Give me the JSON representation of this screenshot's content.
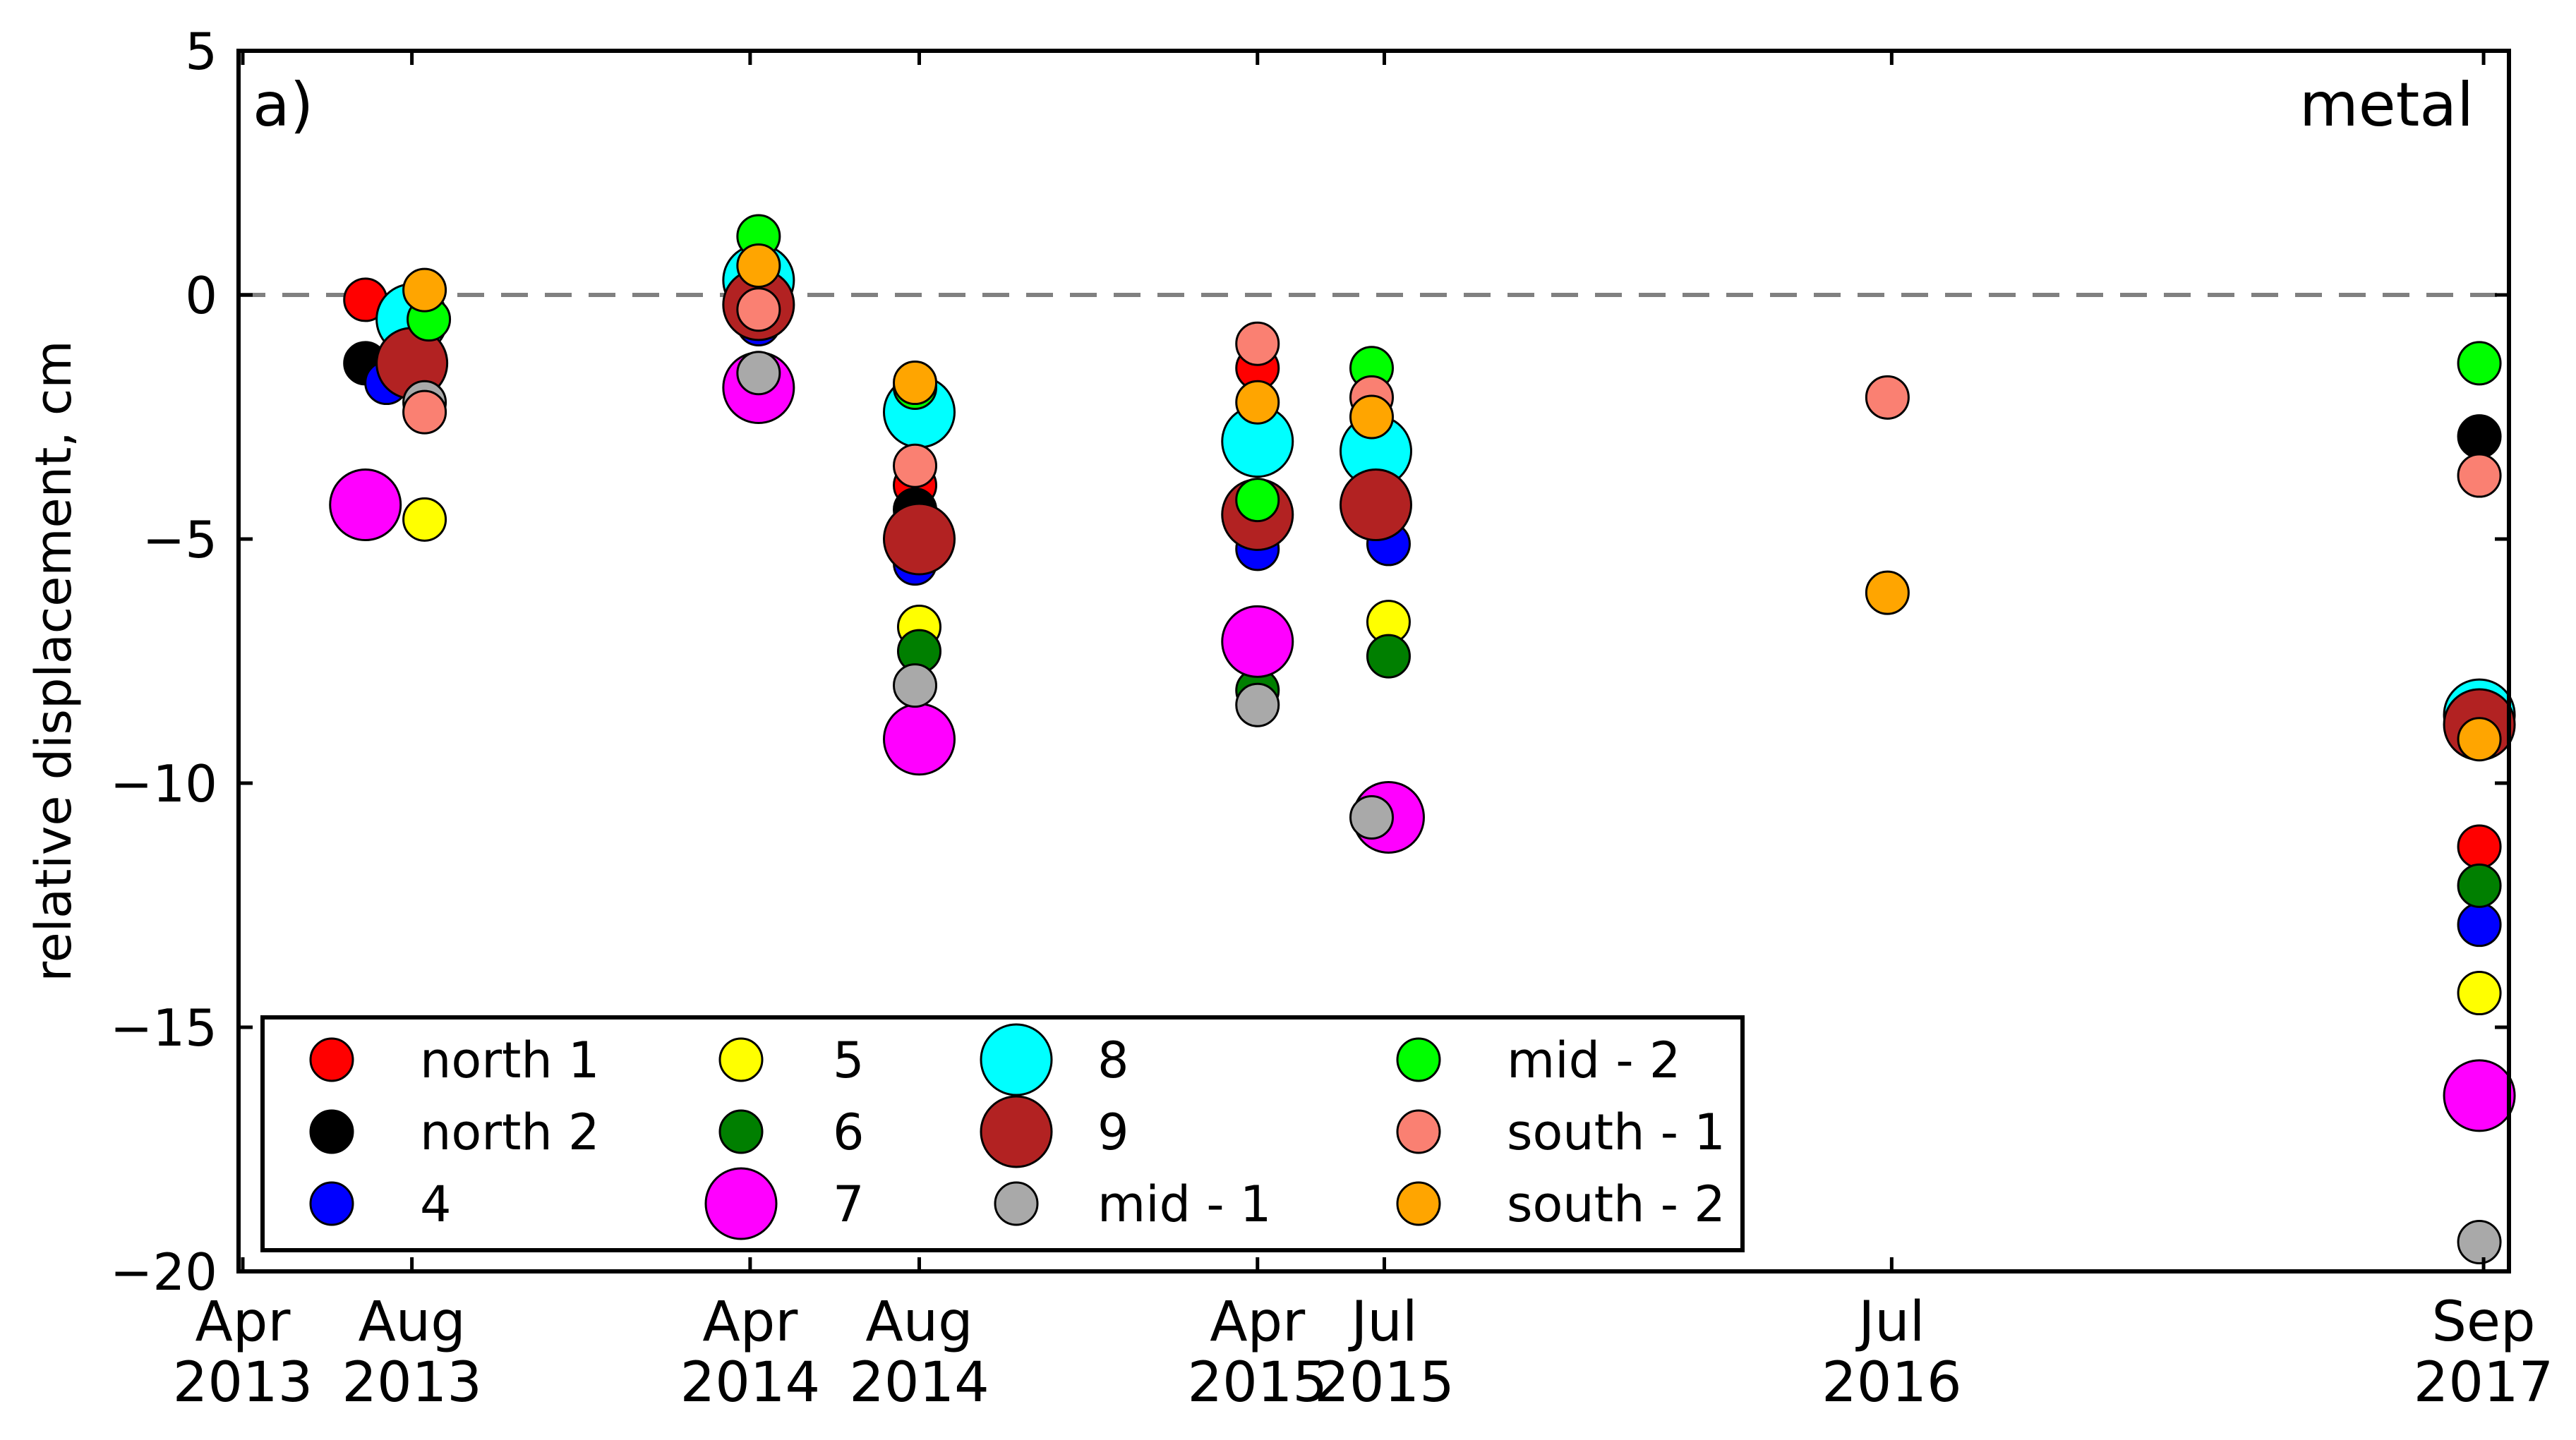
{
  "chart_data": {
    "type": "scatter",
    "panel_label": "a)",
    "material_label": "metal",
    "ylabel": "relative displacement, cm",
    "xlabel": "",
    "ylim": [
      -20,
      5
    ],
    "yticks": [
      5,
      0,
      -5,
      -10,
      -15,
      -20
    ],
    "ytick_labels": [
      "5",
      "0",
      "−5",
      "−10",
      "−15",
      "−20"
    ],
    "x_range_months": [
      -0.1,
      53.6
    ],
    "xticks": [
      {
        "month": 0,
        "line1": "Apr",
        "line2": "2013"
      },
      {
        "month": 4,
        "line1": "Aug",
        "line2": "2013"
      },
      {
        "month": 12,
        "line1": "Apr",
        "line2": "2014"
      },
      {
        "month": 16,
        "line1": "Aug",
        "line2": "2014"
      },
      {
        "month": 24,
        "line1": "Apr",
        "line2": "2015"
      },
      {
        "month": 27,
        "line1": "Jul",
        "line2": "2015"
      },
      {
        "month": 39,
        "line1": "Jul",
        "line2": "2016"
      },
      {
        "month": 53,
        "line1": "Sep",
        "line2": "2017"
      }
    ],
    "zero_line": 0,
    "series": [
      {
        "name": "north 1",
        "color": "#ff0000",
        "size": "small",
        "points": [
          [
            2.9,
            -0.1
          ],
          [
            15.9,
            -3.9
          ],
          [
            24.0,
            -1.5
          ],
          [
            27.1,
            -4.4
          ],
          [
            52.9,
            -11.3
          ]
        ]
      },
      {
        "name": "north 2",
        "color": "#000000",
        "size": "small",
        "points": [
          [
            2.9,
            -1.4
          ],
          [
            15.9,
            -4.4
          ],
          [
            24.0,
            -4.5
          ],
          [
            27.1,
            -3.3
          ],
          [
            52.9,
            -2.9
          ]
        ]
      },
      {
        "name": "4",
        "color": "#0000ff",
        "size": "small",
        "points": [
          [
            3.4,
            -1.8
          ],
          [
            12.2,
            -0.6
          ],
          [
            15.9,
            -5.5
          ],
          [
            24.0,
            -5.2
          ],
          [
            27.1,
            -5.1
          ],
          [
            52.9,
            -12.9
          ]
        ]
      },
      {
        "name": "5",
        "color": "#ffff00",
        "size": "small",
        "points": [
          [
            4.3,
            -4.6
          ],
          [
            16.0,
            -6.8
          ],
          [
            27.1,
            -6.7
          ],
          [
            52.9,
            -14.3
          ]
        ]
      },
      {
        "name": "6",
        "color": "#007f00",
        "size": "small",
        "points": [
          [
            16.0,
            -7.3
          ],
          [
            24.0,
            -8.1
          ],
          [
            27.1,
            -7.4
          ],
          [
            52.9,
            -12.1
          ]
        ]
      },
      {
        "name": "7",
        "color": "#ff00ff",
        "size": "large",
        "points": [
          [
            2.9,
            -4.3
          ],
          [
            12.2,
            -1.9
          ],
          [
            16.0,
            -9.1
          ],
          [
            24.0,
            -7.1
          ],
          [
            27.1,
            -10.7
          ],
          [
            52.9,
            -16.4
          ]
        ]
      },
      {
        "name": "8",
        "color": "#00ffff",
        "size": "large",
        "points": [
          [
            4.0,
            -0.5
          ],
          [
            12.2,
            0.3
          ],
          [
            16.0,
            -2.4
          ],
          [
            24.0,
            -3.0
          ],
          [
            26.8,
            -3.2
          ],
          [
            52.9,
            -8.6
          ]
        ]
      },
      {
        "name": "9",
        "color": "#b22222",
        "size": "large",
        "points": [
          [
            4.0,
            -1.4
          ],
          [
            12.2,
            -0.2
          ],
          [
            16.0,
            -5.0
          ],
          [
            24.0,
            -4.5
          ],
          [
            26.8,
            -4.3
          ],
          [
            52.9,
            -8.8
          ]
        ]
      },
      {
        "name": "mid - 1",
        "color": "#a9a9a9",
        "size": "small",
        "points": [
          [
            4.3,
            -2.2
          ],
          [
            12.2,
            -1.6
          ],
          [
            15.9,
            -8.0
          ],
          [
            24.0,
            -8.4
          ],
          [
            26.7,
            -10.7
          ],
          [
            52.9,
            -19.4
          ]
        ]
      },
      {
        "name": "mid - 2",
        "color": "#00ff00",
        "size": "small",
        "points": [
          [
            4.4,
            -0.5
          ],
          [
            12.2,
            1.2
          ],
          [
            15.9,
            -1.9
          ],
          [
            24.0,
            -4.2
          ],
          [
            26.7,
            -1.5
          ],
          [
            52.9,
            -1.4
          ]
        ]
      },
      {
        "name": "south - 1",
        "color": "#fa8072",
        "size": "small",
        "points": [
          [
            4.3,
            -2.4
          ],
          [
            12.2,
            -0.3
          ],
          [
            15.9,
            -3.5
          ],
          [
            24.0,
            -1.0
          ],
          [
            26.7,
            -2.1
          ],
          [
            38.9,
            -2.1
          ],
          [
            52.9,
            -3.7
          ]
        ]
      },
      {
        "name": "south - 2",
        "color": "#ffa500",
        "size": "small",
        "points": [
          [
            4.3,
            0.1
          ],
          [
            12.2,
            0.6
          ],
          [
            15.9,
            -1.8
          ],
          [
            24.0,
            -2.2
          ],
          [
            26.7,
            -2.5
          ],
          [
            38.9,
            -6.1
          ],
          [
            52.9,
            -9.1
          ]
        ]
      }
    ],
    "legend": {
      "placement": "bottom-left",
      "columns": [
        [
          "north 1",
          "north 2",
          "4"
        ],
        [
          "5",
          "6",
          "7"
        ],
        [
          "8",
          "9",
          "mid - 1"
        ],
        [
          "mid - 2",
          "south - 1",
          "south - 2"
        ]
      ]
    }
  }
}
